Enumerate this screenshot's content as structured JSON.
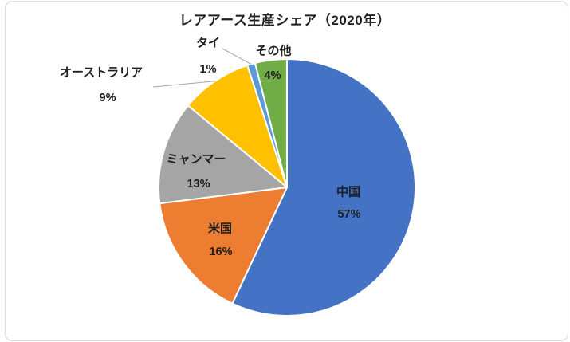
{
  "chart_data": {
    "type": "pie",
    "title": "レアアース生産シェア（2020年）",
    "categories": [
      "中国",
      "米国",
      "ミャンマー",
      "オーストラリア",
      "タイ",
      "その他"
    ],
    "values": [
      57,
      16,
      13,
      9,
      1,
      4
    ],
    "value_labels": [
      "57%",
      "16%",
      "13%",
      "9%",
      "1%",
      "4%"
    ],
    "unit": "%",
    "colors": [
      "#4472C4",
      "#ED7D31",
      "#A5A5A5",
      "#FFC000",
      "#5B9BD5",
      "#70AD47"
    ],
    "start_angle_deg": 0,
    "direction": "clockwise",
    "legend": "none",
    "label_placement": [
      "inside",
      "inside",
      "inside",
      "outside",
      "outside",
      "outside-name-inside-value"
    ],
    "leader_lines_for": [
      "オーストラリア",
      "タイ"
    ],
    "leader_line_color": "#A6A6A6",
    "slice_border_color": "#FFFFFF",
    "text_color": "#1F1F1F",
    "chart_border_color": "#D9D9D9",
    "background_color": "#FFFFFF"
  }
}
